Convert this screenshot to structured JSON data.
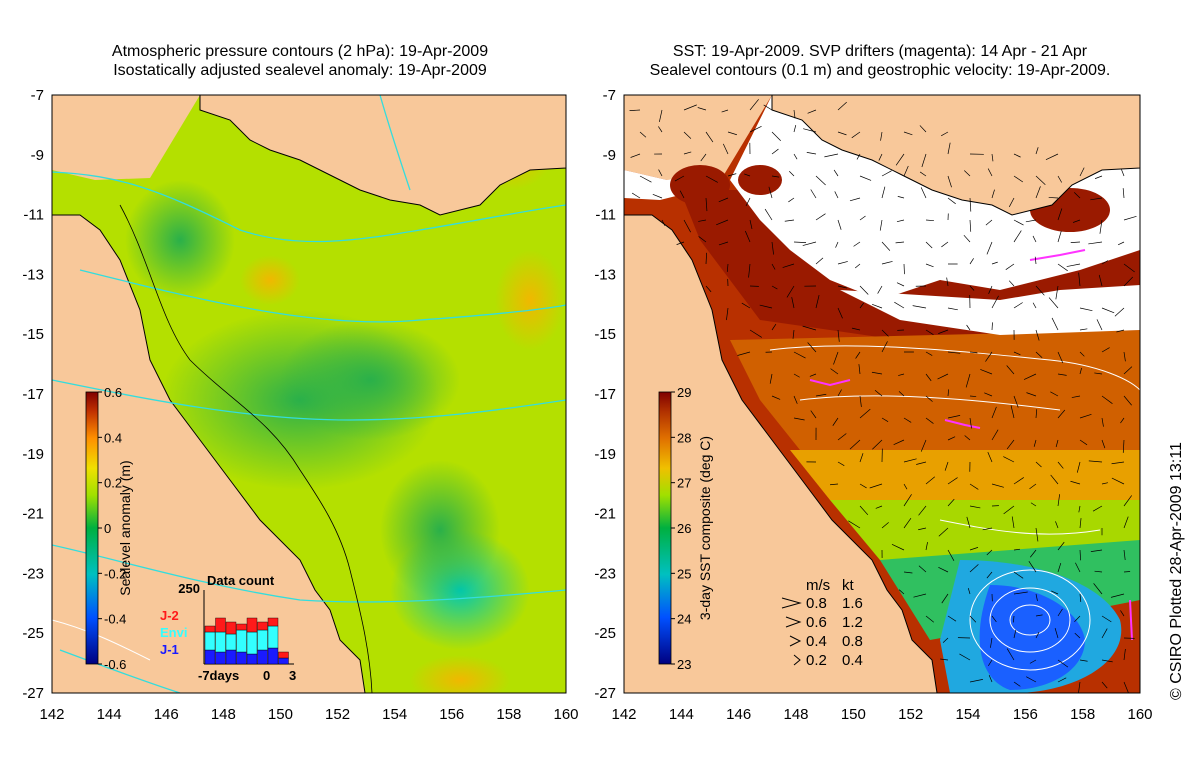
{
  "left_panel": {
    "title_line1": "Atmospheric pressure contours (2 hPa): 19-Apr-2009",
    "title_line2": "Isostatically adjusted sealevel anomaly: 19-Apr-2009",
    "colorbar_label": "Sealevel anomaly (m)",
    "colorbar_ticks": [
      "0.6",
      "0.4",
      "0.2",
      "0",
      "-0.2",
      "-0.4",
      "-0.6"
    ],
    "inset": {
      "title": "Data count",
      "y_tick": "250",
      "x_ticks": [
        "-7days",
        "0",
        "3"
      ],
      "legend": [
        {
          "label": "J-2",
          "color": "#ff1a1a"
        },
        {
          "label": "Envi",
          "color": "#33ffff"
        },
        {
          "label": "J-1",
          "color": "#1a1aff"
        }
      ]
    }
  },
  "right_panel": {
    "title_line1": "SST: 19-Apr-2009. SVP drifters (magenta): 14 Apr - 21 Apr",
    "title_line2": "Sealevel contours (0.1 m) and geostrophic velocity: 19-Apr-2009.",
    "colorbar_label": "3-day SST composite (deg C)",
    "colorbar_ticks": [
      "29",
      "28",
      "27",
      "26",
      "25",
      "24",
      "23"
    ],
    "velocity_legend": {
      "units_ms": "m/s",
      "units_kt": "kt",
      "rows": [
        {
          "ms": "0.8",
          "kt": "1.6"
        },
        {
          "ms": "0.6",
          "kt": "1.2"
        },
        {
          "ms": "0.4",
          "kt": "0.8"
        },
        {
          "ms": "0.2",
          "kt": "0.4"
        }
      ]
    }
  },
  "axes": {
    "y_ticks": [
      "-7",
      "-9",
      "-11",
      "-13",
      "-15",
      "-17",
      "-19",
      "-21",
      "-23",
      "-25",
      "-27"
    ],
    "x_ticks": [
      "142",
      "144",
      "146",
      "148",
      "150",
      "152",
      "154",
      "156",
      "158",
      "160"
    ]
  },
  "credit": "© CSIRO Plotted 28-Apr-2009 13:11",
  "colors": {
    "land": "#f8c89a",
    "cloud": "#ffffff",
    "contour": "#33dddd"
  }
}
